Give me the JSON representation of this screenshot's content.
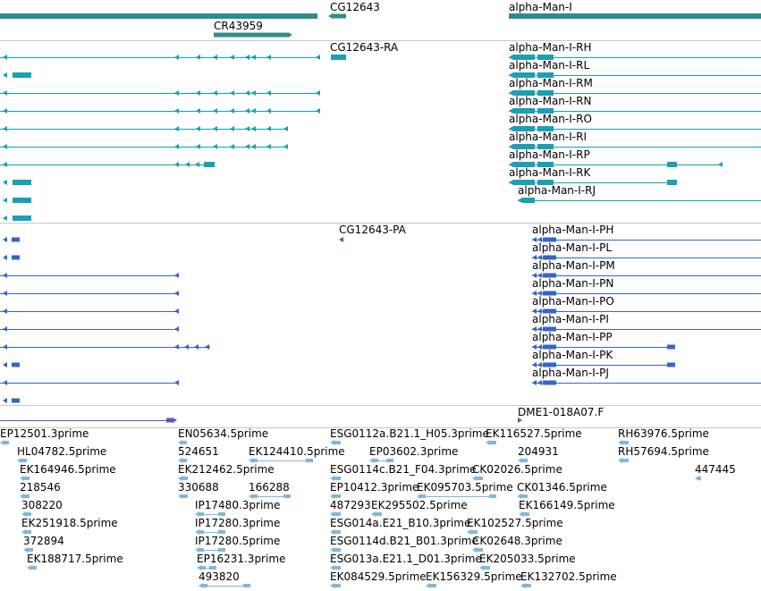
{
  "colors": {
    "gene": "#2f8c8c",
    "transcript": "#1b9fb5",
    "protein": "#3466c8",
    "clone": "#6a50b8",
    "est": "#82b7dc",
    "separator": "#c8c8c8"
  },
  "tracks": {
    "genes": [
      "CG12643",
      "alpha-Man-I",
      "CR43959"
    ],
    "transcripts": [
      "CG12643-RA",
      "alpha-Man-I-RH",
      "alpha-Man-I-RL",
      "alpha-Man-I-RM",
      "alpha-Man-I-RN",
      "alpha-Man-I-RO",
      "alpha-Man-I-RI",
      "alpha-Man-I-RP",
      "alpha-Man-I-RK",
      "alpha-Man-I-RJ"
    ],
    "proteins": [
      "CG12643-PA",
      "alpha-Man-I-PH",
      "alpha-Man-I-PL",
      "alpha-Man-I-PM",
      "alpha-Man-I-PN",
      "alpha-Man-I-PO",
      "alpha-Man-I-PI",
      "alpha-Man-I-PP",
      "alpha-Man-I-PK",
      "alpha-Man-I-PJ"
    ],
    "clones": [
      "DME1-018A07.F"
    ],
    "ests": [
      "EP12501.3prime",
      "EN05634.5prime",
      "ESG0112a.B21.1_H05.3prime",
      "EK116527.5prime",
      "RH63976.5prime",
      "HL04782.5prime",
      "524651",
      "EK124410.5prime",
      "EP03602.3prime",
      "204931",
      "RH57694.5prime",
      "EK164946.5prime",
      "EK212462.5prime",
      "ESG0114c.B21_F04.3prime",
      "CK02026.5prime",
      "447445",
      "218546",
      "330688",
      "166288",
      "EP10412.3prime",
      "EK095703.5prime",
      "CK01346.5prime",
      "308220",
      "IP17480.3prime",
      "487293",
      "EK295502.5prime",
      "EK166149.5prime",
      "EK251918.5prime",
      "IP17280.3prime",
      "ESG014a.E21_B10.3prime",
      "EK102527.5prime",
      "372894",
      "IP17280.5prime",
      "ESG0114d.B21_B01.3prime",
      "CK02648.3prime",
      "EK188717.5prime",
      "EP16231.3prime",
      "ESG013a.E21.1_D01.3prime",
      "EK205033.5prime",
      "493820",
      "EK084529.5prime",
      "EK156329.5prime",
      "EK132702.5prime"
    ]
  }
}
